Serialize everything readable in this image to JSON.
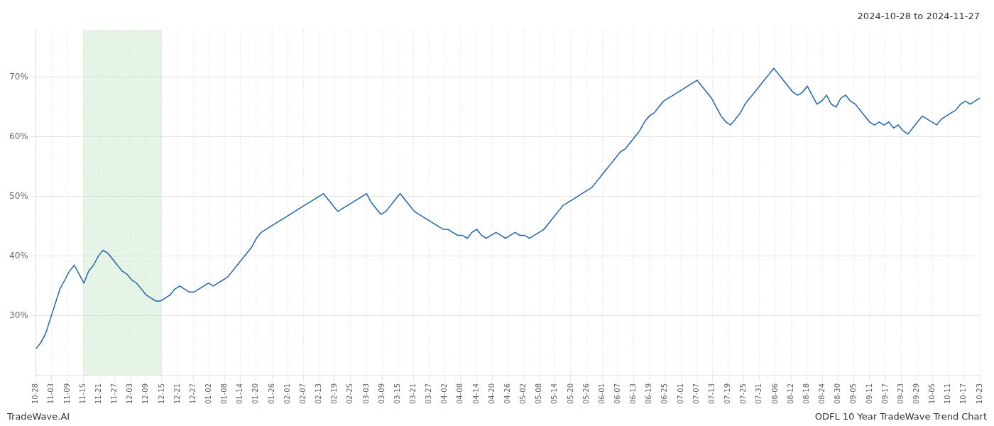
{
  "chart_data": {
    "type": "line",
    "title": "2024-10-28 to 2024-11-27",
    "annotations": [
      {
        "text": "TradeWave.AI"
      },
      {
        "text": "ODFL 10 Year TradeWave Trend Chart"
      }
    ],
    "color": "#2264a8",
    "grid": true,
    "highlight": {
      "from": 9.85,
      "to": 26.266666666666666,
      "color": "#c8e6c9"
    },
    "xlim": [
      0,
      197
    ],
    "ylim": [
      20,
      78
    ],
    "yticks": [
      {
        "value": 30,
        "label": "30%"
      },
      {
        "value": 40,
        "label": "40%"
      },
      {
        "value": 50,
        "label": "50%"
      },
      {
        "value": 60,
        "label": "60%"
      },
      {
        "value": 70,
        "label": "70%"
      }
    ],
    "xticks": [
      {
        "value": 0,
        "label": "10-28"
      },
      {
        "value": 3.283333333333333,
        "label": "11-03"
      },
      {
        "value": 6.566666666666666,
        "label": "11-09"
      },
      {
        "value": 9.85,
        "label": "11-15"
      },
      {
        "value": 13.133333333333333,
        "label": "11-21"
      },
      {
        "value": 16.416666666666668,
        "label": "11-27"
      },
      {
        "value": 19.7,
        "label": "12-03"
      },
      {
        "value": 22.983333333333334,
        "label": "12-09"
      },
      {
        "value": 26.266666666666666,
        "label": "12-15"
      },
      {
        "value": 29.55,
        "label": "12-21"
      },
      {
        "value": 32.833333333333336,
        "label": "12-27"
      },
      {
        "value": 36.11666666666667,
        "label": "01-02"
      },
      {
        "value": 39.4,
        "label": "01-08"
      },
      {
        "value": 42.68333333333333,
        "label": "01-14"
      },
      {
        "value": 45.96666666666667,
        "label": "01-20"
      },
      {
        "value": 49.25,
        "label": "01-26"
      },
      {
        "value": 52.53333333333333,
        "label": "02-01"
      },
      {
        "value": 55.81666666666667,
        "label": "02-07"
      },
      {
        "value": 59.1,
        "label": "02-13"
      },
      {
        "value": 62.38333333333333,
        "label": "02-19"
      },
      {
        "value": 65.66666666666667,
        "label": "02-25"
      },
      {
        "value": 68.95,
        "label": "03-03"
      },
      {
        "value": 72.23333333333333,
        "label": "03-09"
      },
      {
        "value": 75.51666666666667,
        "label": "03-15"
      },
      {
        "value": 78.8,
        "label": "03-21"
      },
      {
        "value": 82.08333333333333,
        "label": "03-27"
      },
      {
        "value": 85.36666666666666,
        "label": "04-02"
      },
      {
        "value": 88.65,
        "label": "04-08"
      },
      {
        "value": 91.93333333333334,
        "label": "04-14"
      },
      {
        "value": 95.21666666666667,
        "label": "04-20"
      },
      {
        "value": 98.5,
        "label": "04-26"
      },
      {
        "value": 101.78333333333333,
        "label": "05-02"
      },
      {
        "value": 105.06666666666666,
        "label": "05-08"
      },
      {
        "value": 108.35,
        "label": "05-14"
      },
      {
        "value": 111.63333333333334,
        "label": "05-20"
      },
      {
        "value": 114.91666666666667,
        "label": "05-26"
      },
      {
        "value": 118.2,
        "label": "06-01"
      },
      {
        "value": 121.48333333333333,
        "label": "06-07"
      },
      {
        "value": 124.76666666666667,
        "label": "06-13"
      },
      {
        "value": 128.05,
        "label": "06-19"
      },
      {
        "value": 131.33333333333334,
        "label": "06-25"
      },
      {
        "value": 134.61666666666667,
        "label": "07-01"
      },
      {
        "value": 137.9,
        "label": "07-07"
      },
      {
        "value": 141.18333333333334,
        "label": "07-13"
      },
      {
        "value": 144.46666666666667,
        "label": "07-19"
      },
      {
        "value": 147.75,
        "label": "07-25"
      },
      {
        "value": 151.03333333333333,
        "label": "07-31"
      },
      {
        "value": 154.31666666666666,
        "label": "08-06"
      },
      {
        "value": 157.6,
        "label": "08-12"
      },
      {
        "value": 160.88333333333333,
        "label": "08-18"
      },
      {
        "value": 164.16666666666666,
        "label": "08-24"
      },
      {
        "value": 167.45,
        "label": "08-30"
      },
      {
        "value": 170.73333333333332,
        "label": "09-05"
      },
      {
        "value": 174.01666666666668,
        "label": "09-11"
      },
      {
        "value": 177.3,
        "label": "09-17"
      },
      {
        "value": 180.58333333333334,
        "label": "09-23"
      },
      {
        "value": 183.86666666666667,
        "label": "09-29"
      },
      {
        "value": 187.15,
        "label": "10-05"
      },
      {
        "value": 190.43333333333334,
        "label": "10-11"
      },
      {
        "value": 193.71666666666667,
        "label": "10-17"
      },
      {
        "value": 197,
        "label": "10-23"
      }
    ],
    "x": [
      0,
      1,
      2,
      3,
      4,
      5,
      6,
      7,
      8,
      9,
      10,
      11,
      12,
      13,
      14,
      15,
      16,
      17,
      18,
      19,
      20,
      21,
      22,
      23,
      24,
      25,
      26,
      27,
      28,
      29,
      30,
      31,
      32,
      33,
      34,
      35,
      36,
      37,
      38,
      39,
      40,
      41,
      42,
      43,
      44,
      45,
      46,
      47,
      48,
      49,
      50,
      51,
      52,
      53,
      54,
      55,
      56,
      57,
      58,
      59,
      60,
      61,
      62,
      63,
      64,
      65,
      66,
      67,
      68,
      69,
      70,
      71,
      72,
      73,
      74,
      75,
      76,
      77,
      78,
      79,
      80,
      81,
      82,
      83,
      84,
      85,
      86,
      87,
      88,
      89,
      90,
      91,
      92,
      93,
      94,
      95,
      96,
      97,
      98,
      99,
      100,
      101,
      102,
      103,
      104,
      105,
      106,
      107,
      108,
      109,
      110,
      111,
      112,
      113,
      114,
      115,
      116,
      117,
      118,
      119,
      120,
      121,
      122,
      123,
      124,
      125,
      126,
      127,
      128,
      129,
      130,
      131,
      132,
      133,
      134,
      135,
      136,
      137,
      138,
      139,
      140,
      141,
      142,
      143,
      144,
      145,
      146,
      147,
      148,
      149,
      150,
      151,
      152,
      153,
      154,
      155,
      156,
      157,
      158,
      159,
      160,
      161,
      162,
      163,
      164,
      165,
      166,
      167,
      168,
      169,
      170,
      171,
      172,
      173,
      174,
      175,
      176,
      177,
      178,
      179,
      180,
      181,
      182,
      183,
      184,
      185,
      186,
      187,
      188,
      189,
      190,
      191,
      192,
      193,
      194,
      195,
      196,
      197
    ],
    "values": [
      24.5,
      25.5,
      27.0,
      29.5,
      32.0,
      34.5,
      36.0,
      37.5,
      38.5,
      37.0,
      35.5,
      37.5,
      38.5,
      40.0,
      41.0,
      40.5,
      39.5,
      38.5,
      37.5,
      37.0,
      36.0,
      35.5,
      34.5,
      33.5,
      33.0,
      32.5,
      32.5,
      33.0,
      33.5,
      34.5,
      35.0,
      34.5,
      34.0,
      34.0,
      34.5,
      35.0,
      35.5,
      35.0,
      35.5,
      36.0,
      36.5,
      37.5,
      38.5,
      39.5,
      40.5,
      41.5,
      43.0,
      44.0,
      44.5,
      45.0,
      45.5,
      46.0,
      46.5,
      47.0,
      47.5,
      48.0,
      48.5,
      49.0,
      49.5,
      50.0,
      50.5,
      49.5,
      48.5,
      47.5,
      48.0,
      48.5,
      49.0,
      49.5,
      50.0,
      50.5,
      49.0,
      48.0,
      47.0,
      47.5,
      48.5,
      49.5,
      50.5,
      49.5,
      48.5,
      47.5,
      47.0,
      46.5,
      46.0,
      45.5,
      45.0,
      44.5,
      44.5,
      44.0,
      43.5,
      43.5,
      43.0,
      44.0,
      44.5,
      43.5,
      43.0,
      43.5,
      44.0,
      43.5,
      43.0,
      43.5,
      44.0,
      43.5,
      43.5,
      43.0,
      43.5,
      44.0,
      44.5,
      45.5,
      46.5,
      47.5,
      48.5,
      49.0,
      49.5,
      50.0,
      50.5,
      51.0,
      51.5,
      52.5,
      53.5,
      54.5,
      55.5,
      56.5,
      57.5,
      58.0,
      59.0,
      60.0,
      61.0,
      62.5,
      63.5,
      64.0,
      65.0,
      66.0,
      66.5,
      67.0,
      67.5,
      68.0,
      68.5,
      69.0,
      69.5,
      68.5,
      67.5,
      66.5,
      65.0,
      63.5,
      62.5,
      62.0,
      63.0,
      64.0,
      65.5,
      66.5,
      67.5,
      68.5,
      69.5,
      70.5,
      71.5,
      70.5,
      69.5,
      68.5,
      67.5,
      67.0,
      67.5,
      68.5,
      67.0,
      65.5,
      66.0,
      67.0,
      65.5,
      65.0,
      66.5,
      67.0,
      66.0,
      65.5,
      64.5,
      63.5,
      62.5,
      62.0,
      62.5,
      62.0,
      62.5,
      61.5,
      62.0,
      61.0,
      60.5,
      61.5,
      62.5,
      63.5,
      63.0,
      62.5,
      62.0,
      63.0,
      63.5,
      64.0,
      64.5,
      65.5,
      66.0,
      65.5,
      66.0,
      66.5
    ]
  }
}
